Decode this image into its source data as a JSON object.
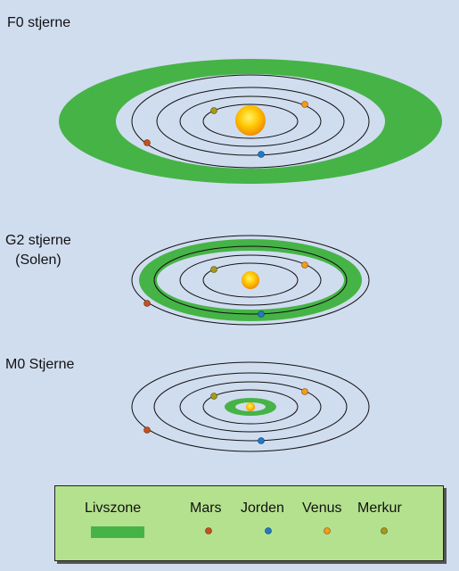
{
  "systems": [
    {
      "label": "F0 stjerne"
    },
    {
      "label": "G2 stjerne",
      "label2": "(Solen)"
    },
    {
      "label": "M0 Stjerne"
    }
  ],
  "legend": {
    "habitable": "Livszone",
    "mars": "Mars",
    "earth": "Jorden",
    "venus": "Venus",
    "mercury": "Merkur"
  },
  "colors": {
    "background": "#d0ddef",
    "habitable": "#46b347",
    "star": "#f7b100",
    "mars": "#c9501c",
    "earth": "#1f7bc6",
    "venus": "#f39b1b",
    "mercury": "#a59a1a",
    "legend_bg": "#b4e18e"
  }
}
